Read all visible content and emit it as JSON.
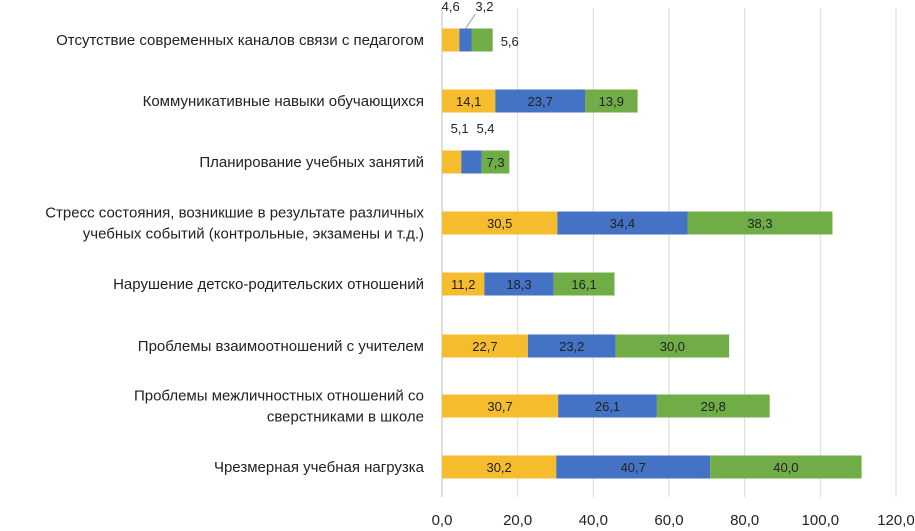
{
  "chart_data": {
    "type": "bar",
    "orientation": "horizontal",
    "stacked": true,
    "categories": [
      "Отсутствие современных каналов связи с педагогом",
      "Коммуникативные навыки обучающихся",
      "Планирование учебных занятий",
      "Стресс состояния, возникшие в результате различных учебных событий (контрольные, экзамены и т.д.)",
      "Нарушение детско-родительских отношений",
      "Проблемы взаимоотношений с учителем",
      "Проблемы межличностных отношений со сверстниками в школе",
      "Чрезмерная учебная нагрузка"
    ],
    "category_lines": [
      [
        "Отсутствие современных каналов связи с педагогом"
      ],
      [
        "Коммуникативные навыки обучающихся"
      ],
      [
        "Планирование учебных занятий"
      ],
      [
        "Стресс состояния, возникшие в результате различных",
        "учебных событий (контрольные, экзамены и т.д.)"
      ],
      [
        "Нарушение детско-родительских отношений"
      ],
      [
        "Проблемы взаимоотношений с учителем"
      ],
      [
        "Проблемы межличностных отношений со",
        "сверстниками в школе"
      ],
      [
        "Чрезмерная учебная нагрузка"
      ]
    ],
    "series": [
      {
        "name": "series-1",
        "color": "#F5BD2E",
        "values": [
          4.6,
          14.1,
          5.1,
          30.5,
          11.2,
          22.7,
          30.7,
          30.2
        ],
        "labels": [
          "4,6",
          "14,1",
          "5,1",
          "30,5",
          "11,2",
          "22,7",
          "30,7",
          "30,2"
        ]
      },
      {
        "name": "series-2",
        "color": "#4472C4",
        "values": [
          3.2,
          23.7,
          5.4,
          34.4,
          18.3,
          23.2,
          26.1,
          40.7
        ],
        "labels": [
          "3,2",
          "23,7",
          "5,4",
          "34,4",
          "18,3",
          "23,2",
          "26,1",
          "40,7"
        ]
      },
      {
        "name": "series-3",
        "color": "#70AD47",
        "values": [
          5.6,
          13.9,
          7.3,
          38.3,
          16.1,
          30.0,
          29.8,
          40.0
        ],
        "labels": [
          "5,6",
          "13,9",
          "7,3",
          "38,3",
          "16,1",
          "30,0",
          "29,8",
          "40,0"
        ]
      }
    ],
    "xlim": [
      0,
      120
    ],
    "xticks": [
      0,
      20,
      40,
      60,
      80,
      100,
      120
    ],
    "xtick_labels": [
      "0,0",
      "20,0",
      "40,0",
      "60,0",
      "80,0",
      "100,0",
      "120,0"
    ],
    "grid": true,
    "legend": "none",
    "title": "",
    "xlabel": "",
    "ylabel": ""
  }
}
